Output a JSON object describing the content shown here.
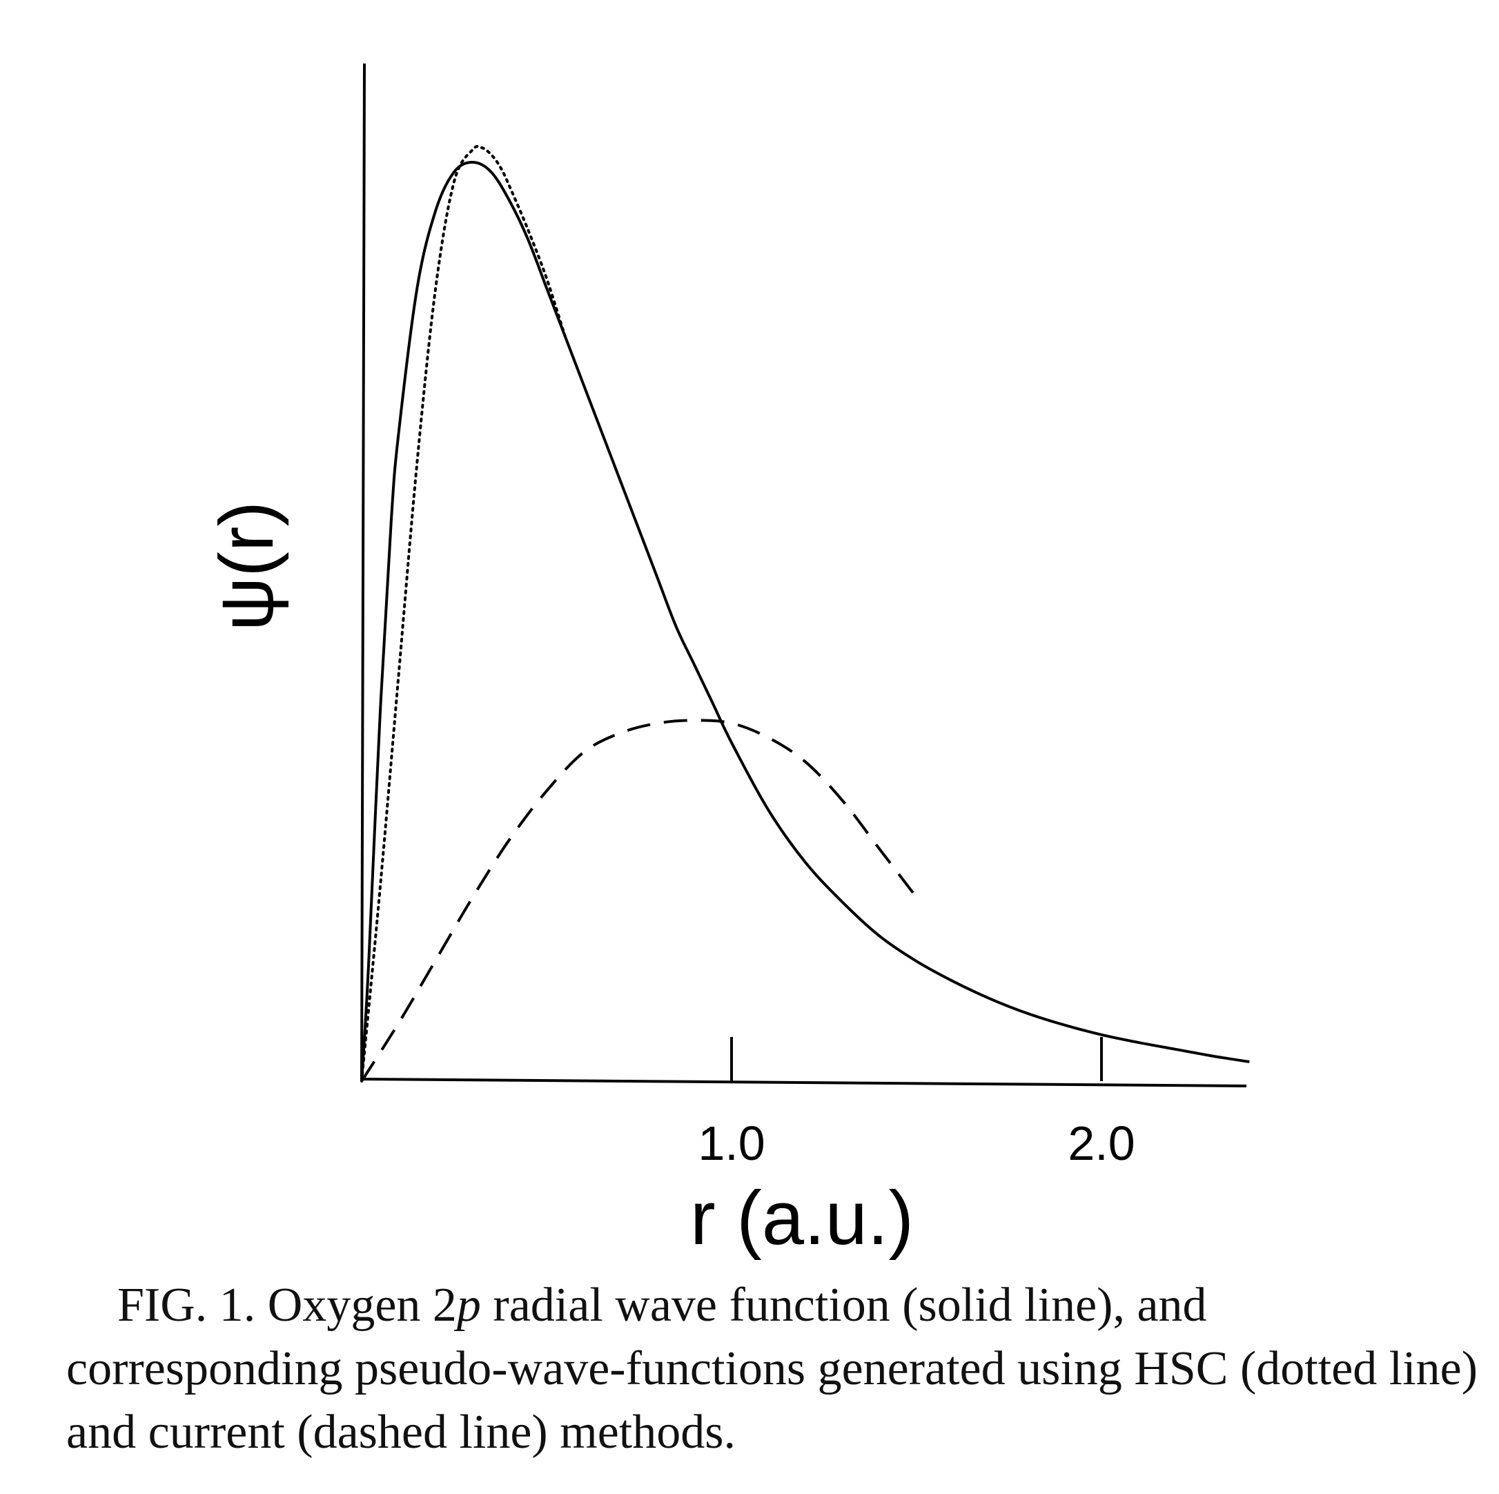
{
  "chart_data": {
    "type": "line",
    "xlabel": "r  (a.u.)",
    "ylabel": "ψ(r)",
    "xlim": [
      0,
      2.4
    ],
    "ylim": [
      0,
      1.0
    ],
    "xticks": [
      {
        "value": 1.0,
        "label": "1.0"
      },
      {
        "value": 2.0,
        "label": "2.0"
      }
    ],
    "grid": false,
    "legend": "none",
    "series": [
      {
        "style": "solid",
        "x": [
          0,
          0.01,
          0.02,
          0.05,
          0.08,
          0.1,
          0.15,
          0.2,
          0.25,
          0.3,
          0.35,
          0.4,
          0.45,
          0.5,
          0.55,
          0.6,
          0.65,
          0.7,
          0.75,
          0.8,
          0.85,
          0.9,
          0.95,
          1.0,
          1.1,
          1.2,
          1.3,
          1.4,
          1.5,
          1.6,
          1.7,
          1.8,
          1.9,
          2.0,
          2.1,
          2.2,
          2.3,
          2.4
        ],
        "values": [
          0,
          0.06,
          0.13,
          0.38,
          0.58,
          0.67,
          0.82,
          0.9,
          0.94,
          0.95,
          0.94,
          0.91,
          0.87,
          0.82,
          0.77,
          0.72,
          0.67,
          0.62,
          0.57,
          0.52,
          0.47,
          0.43,
          0.39,
          0.35,
          0.28,
          0.226,
          0.185,
          0.15,
          0.124,
          0.103,
          0.085,
          0.07,
          0.058,
          0.048,
          0.04,
          0.033,
          0.026,
          0.02
        ]
      },
      {
        "style": "dotted",
        "x": [
          0,
          0.05,
          0.1,
          0.15,
          0.2,
          0.25,
          0.3,
          0.325,
          0.35,
          0.375,
          0.4,
          0.45,
          0.5,
          0.55
        ],
        "values": [
          0,
          0.2,
          0.42,
          0.64,
          0.82,
          0.93,
          0.963,
          0.965,
          0.958,
          0.945,
          0.925,
          0.88,
          0.83,
          0.77
        ]
      },
      {
        "style": "dashed",
        "x": [
          0,
          0.1,
          0.2,
          0.3,
          0.4,
          0.5,
          0.6,
          0.7,
          0.8,
          0.9,
          1.0,
          1.1,
          1.2,
          1.3,
          1.4,
          1.5
        ],
        "values": [
          0,
          0.06,
          0.125,
          0.19,
          0.25,
          0.3,
          0.34,
          0.36,
          0.37,
          0.373,
          0.37,
          0.355,
          0.33,
          0.29,
          0.24,
          0.19
        ]
      }
    ]
  },
  "caption": {
    "lead": "FIG. 1.  Oxygen 2",
    "italic": "p",
    "text": " radial wave function (solid line), and corresponding pseudo-wave-functions generated using HSC (dotted line) and current (dashed line) methods."
  }
}
